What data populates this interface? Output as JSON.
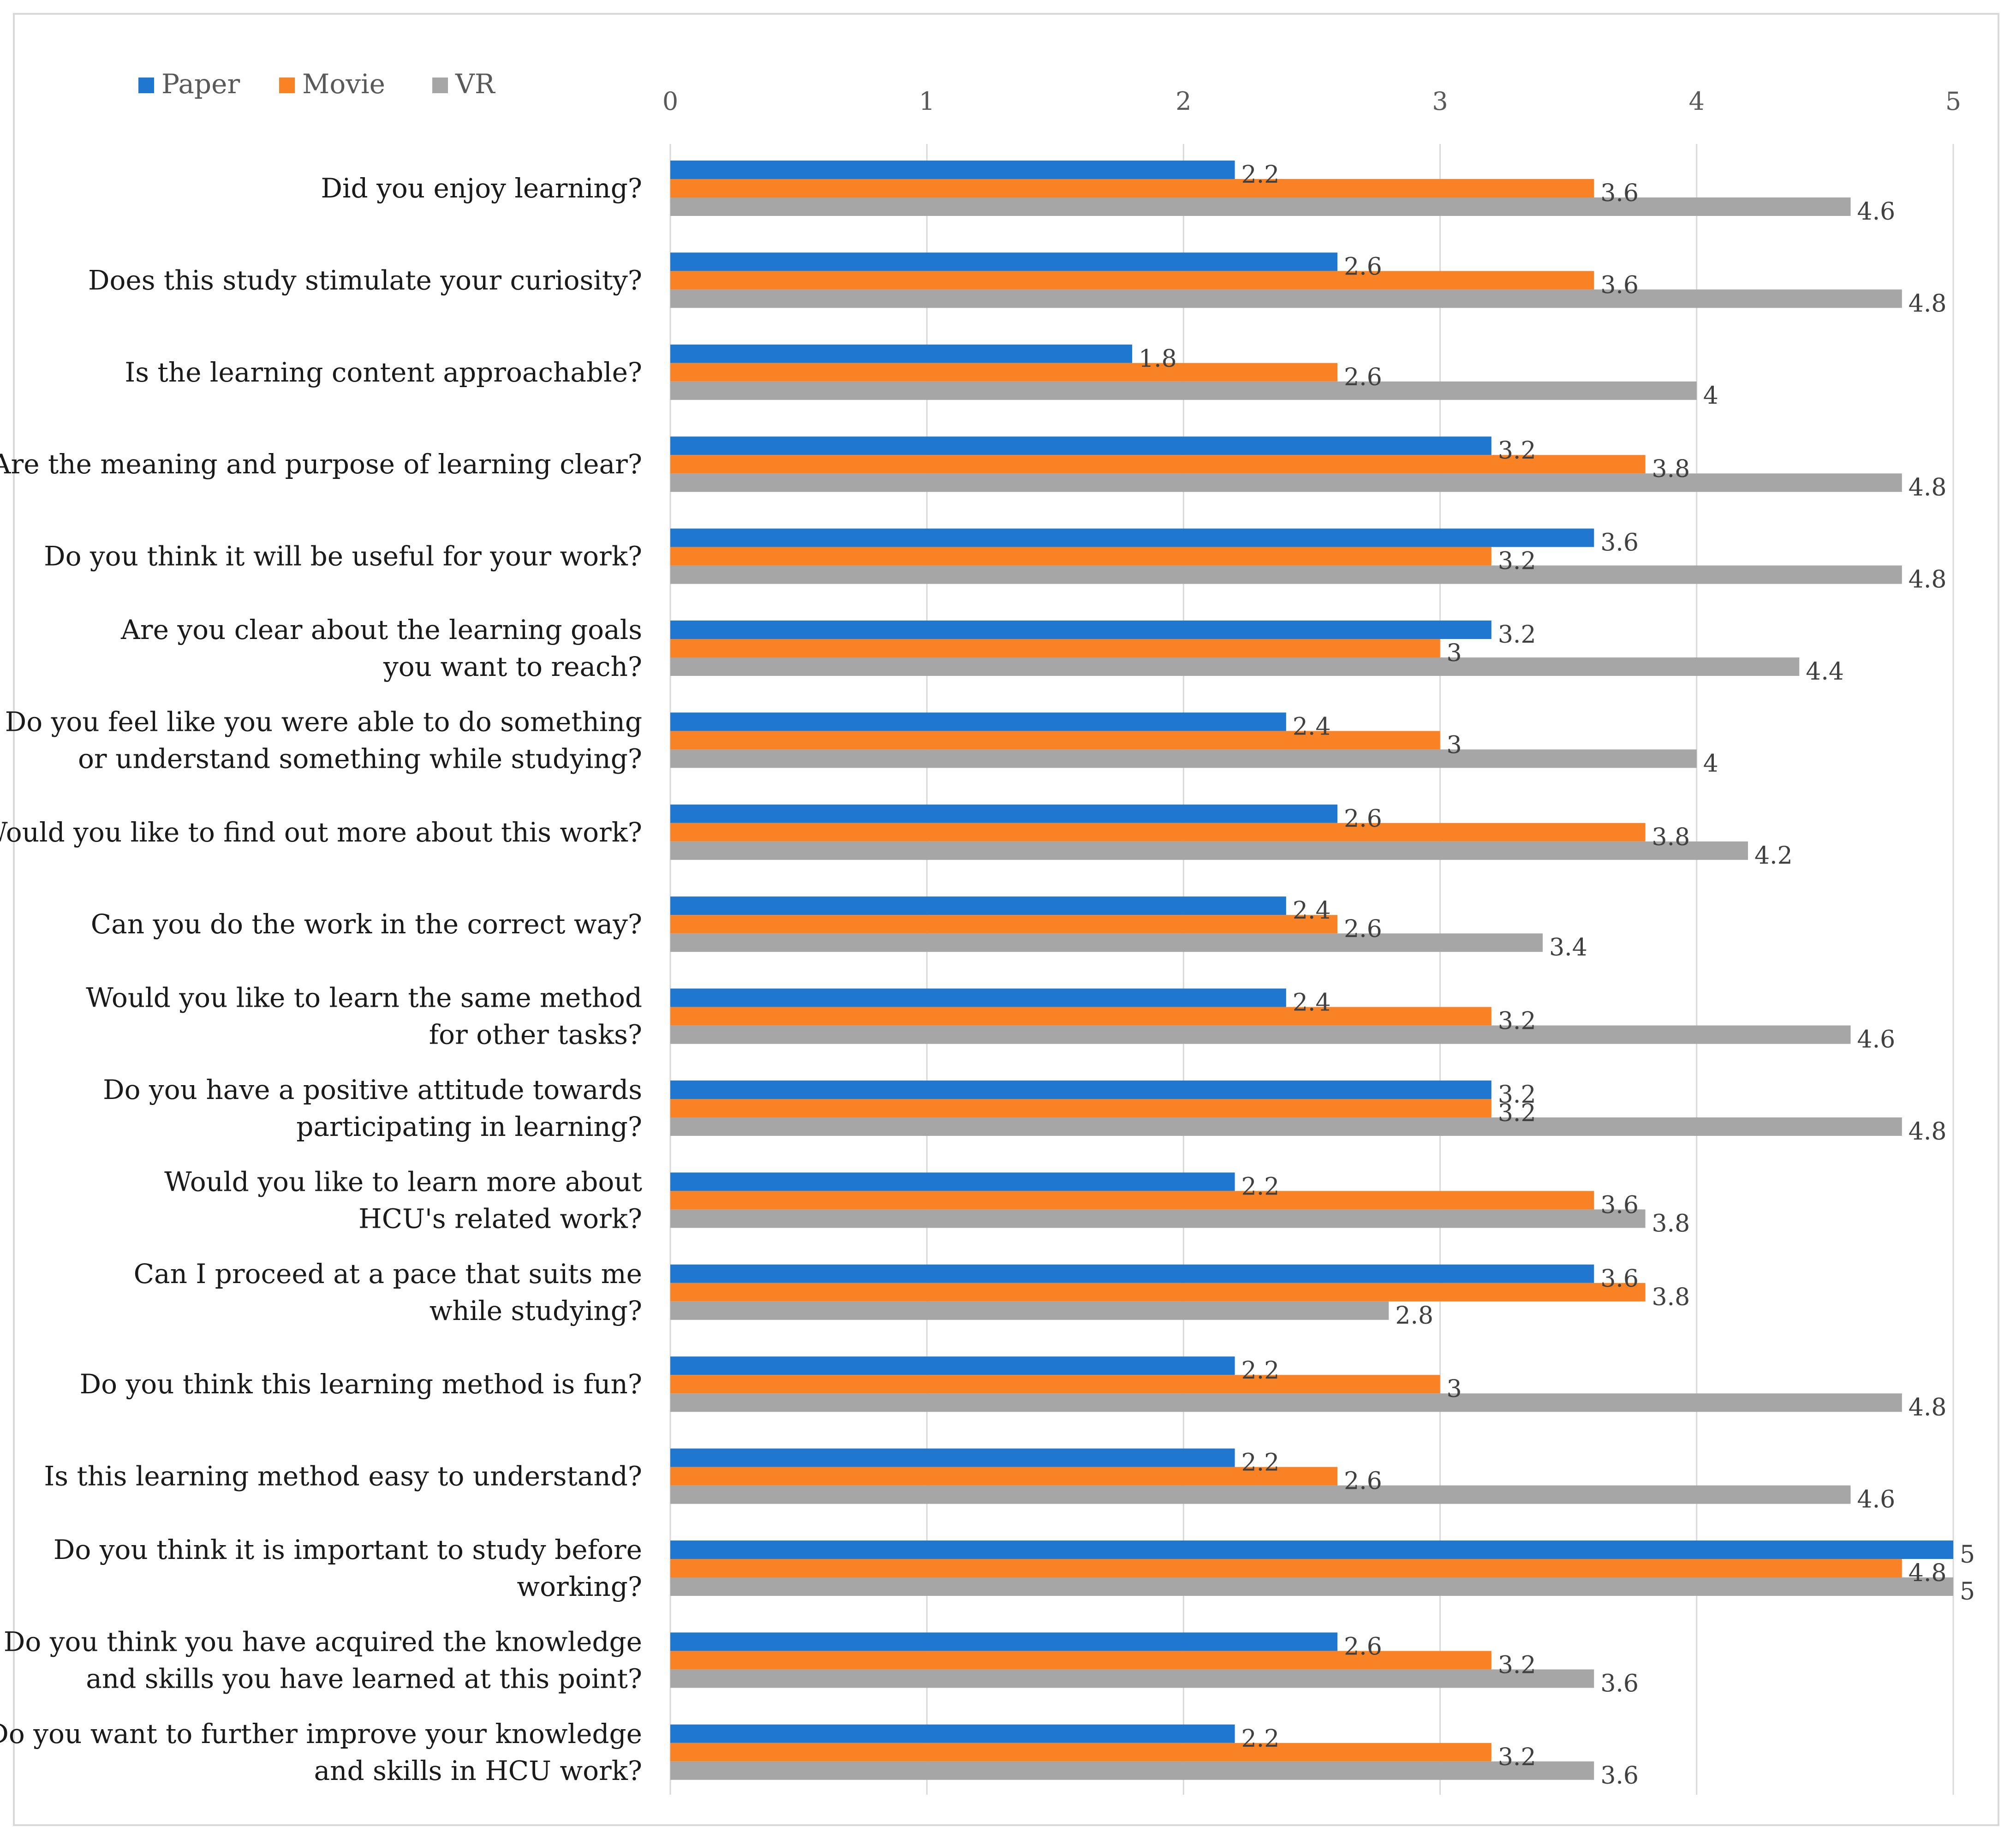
{
  "chart_data": {
    "type": "bar",
    "orientation": "horizontal",
    "title": "",
    "xlabel": "",
    "ylabel": "",
    "xlim": [
      0,
      5
    ],
    "xticks": [
      "0",
      "1",
      "2",
      "3",
      "4",
      "5"
    ],
    "grid": true,
    "legend_position": "top-left",
    "colors": {
      "Paper": "#1f77d0",
      "Movie": "#f98225",
      "VR": "#a6a6a6"
    },
    "categories": [
      [
        "Did you enjoy learning?"
      ],
      [
        "Does this study stimulate your curiosity?"
      ],
      [
        "Is the learning content approachable?"
      ],
      [
        "Are the meaning and purpose of learning clear?"
      ],
      [
        "Do you think it will be useful for your work?"
      ],
      [
        "Are you clear about the learning goals",
        "you want to reach?"
      ],
      [
        "Do you feel like you were able to do something",
        "or understand something while studying?"
      ],
      [
        "Would you like to find out more about this work?"
      ],
      [
        "Can you do the work in the correct way?"
      ],
      [
        "Would you like to learn the same method",
        "for other tasks?"
      ],
      [
        "Do you have a positive attitude towards",
        "participating in learning?"
      ],
      [
        "Would you like to learn more about",
        "HCU's related work?"
      ],
      [
        "Can I proceed at a pace that suits me",
        "while studying?"
      ],
      [
        "Do you think this learning method is fun?"
      ],
      [
        "Is this learning method easy to understand?"
      ],
      [
        "Do you think it is important to study before",
        "working?"
      ],
      [
        "Do you think you have acquired the knowledge",
        "and skills you have learned at this point?"
      ],
      [
        "Do you want to further improve your knowledge",
        "and skills in HCU work?"
      ]
    ],
    "series": [
      {
        "name": "Paper",
        "values": [
          2.2,
          2.6,
          1.8,
          3.2,
          3.6,
          3.2,
          2.4,
          2.6,
          2.4,
          2.4,
          3.2,
          2.2,
          3.6,
          2.2,
          2.2,
          5,
          2.6,
          2.2
        ]
      },
      {
        "name": "Movie",
        "values": [
          3.6,
          3.6,
          2.6,
          3.8,
          3.2,
          3,
          3,
          3.8,
          2.6,
          3.2,
          3.2,
          3.6,
          3.8,
          3,
          2.6,
          4.8,
          3.2,
          3.2
        ]
      },
      {
        "name": "VR",
        "values": [
          4.6,
          4.8,
          4,
          4.8,
          4.8,
          4.4,
          4,
          4.2,
          3.4,
          4.6,
          4.8,
          3.8,
          2.8,
          4.8,
          4.6,
          5,
          3.6,
          3.6
        ]
      }
    ]
  }
}
